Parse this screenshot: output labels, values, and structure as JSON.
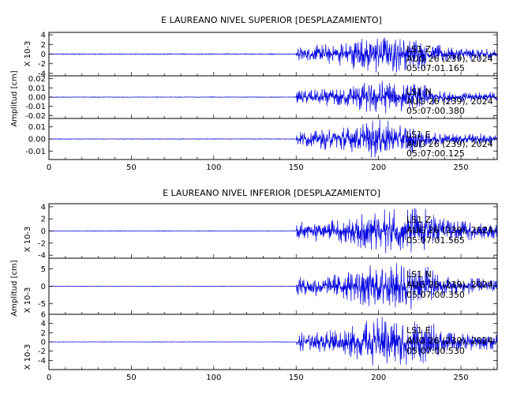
{
  "chart_data": [
    {
      "type": "line",
      "title": "E LAUREANO NIVEL SUPERIOR [DESPLAZAMIENTO]",
      "ylabel": "Amplitud [cm]",
      "xlim": [
        0,
        272
      ],
      "x_ticks": [
        "0",
        "50",
        "100",
        "150",
        "200",
        "250"
      ],
      "grid": false,
      "panels": [
        {
          "name": "LS1 Z",
          "stamp_lines": [
            "LS1 Z",
            "AUG 26 (239), 2024",
            "05:07:01.165"
          ],
          "scale_label": "X 10-3",
          "ylim": [
            -4.5,
            4.5
          ],
          "y_ticks": [
            "4",
            "2",
            "0",
            "-2",
            "-4"
          ],
          "onset_s": 150,
          "peak_s": 205,
          "noise": 0.12,
          "peak_amp": 4.3,
          "color": "#0000e0"
        },
        {
          "name": "LS1 N",
          "stamp_lines": [
            "LS1 N",
            "AUG 26 (239), 2024",
            "05:07:00.380"
          ],
          "scale_label": "",
          "ylim": [
            -0.023,
            0.023
          ],
          "y_ticks": [
            "0.02",
            "0.01",
            "0.00",
            "-0.01",
            "-0.02"
          ],
          "onset_s": 150,
          "peak_s": 205,
          "noise": 0.0004,
          "peak_amp": 0.019,
          "color": "#0000e0"
        },
        {
          "name": "LS1 E",
          "stamp_lines": [
            "LS1 E",
            "AUG 26 (239), 2024",
            "05:07:00.125"
          ],
          "scale_label": "",
          "ylim": [
            -0.017,
            0.017
          ],
          "y_ticks": [
            "0.01",
            "0.00",
            "-0.01"
          ],
          "onset_s": 150,
          "peak_s": 200,
          "noise": 0.0003,
          "peak_amp": 0.016,
          "color": "#0000e0"
        }
      ]
    },
    {
      "type": "line",
      "title": "E LAUREANO NIVEL INFERIOR [DESPLAZAMIENTO]",
      "ylabel": "Amplitud [cm]",
      "xlim": [
        0,
        272
      ],
      "x_ticks": [
        "0",
        "50",
        "100",
        "150",
        "200",
        "250"
      ],
      "grid": false,
      "panels": [
        {
          "name": "LS1 Z",
          "stamp_lines": [
            "LS1 Z",
            "AUG 26 (239), 2024",
            "05:07:01.565"
          ],
          "scale_label": "X 10-3",
          "ylim": [
            -4.5,
            4.5
          ],
          "y_ticks": [
            "4",
            "2",
            "0",
            "-2",
            "-4"
          ],
          "onset_s": 150,
          "peak_s": 215,
          "noise": 0.05,
          "peak_amp": 4.4,
          "color": "#0000e0"
        },
        {
          "name": "LS1 N",
          "stamp_lines": [
            "LS1 N",
            "AUG 26 (239), 2024",
            "05:07:00.350"
          ],
          "scale_label": "X 10-3",
          "ylim": [
            -8,
            8
          ],
          "y_ticks": [
            "5",
            "0",
            "-5"
          ],
          "onset_s": 150,
          "peak_s": 210,
          "noise": 0.08,
          "peak_amp": 7.5,
          "color": "#0000e0"
        },
        {
          "name": "LS1 E",
          "stamp_lines": [
            "LS1 E",
            "AUG 26 (239), 2024",
            "05:07:00.530"
          ],
          "scale_label": "X 10-3",
          "ylim": [
            -6,
            6
          ],
          "y_ticks": [
            "6",
            "4",
            "2",
            "0",
            "-2",
            "-4"
          ],
          "onset_s": 150,
          "peak_s": 210,
          "noise": 0.06,
          "peak_amp": 5.8,
          "color": "#0000e0"
        }
      ]
    }
  ]
}
